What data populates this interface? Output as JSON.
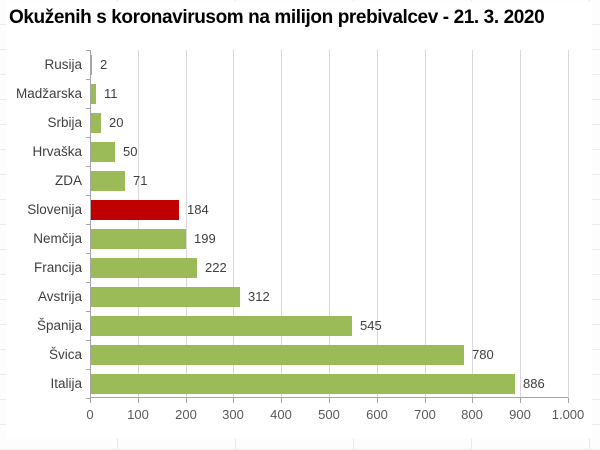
{
  "chart_data": {
    "type": "bar",
    "orientation": "horizontal",
    "title": "Okuženih s koronavirusom na milijon prebivalcev - 21. 3. 2020",
    "categories": [
      "Rusija",
      "Madžarska",
      "Srbija",
      "Hrvaška",
      "ZDA",
      "Slovenija",
      "Nemčija",
      "Francija",
      "Avstrija",
      "Španija",
      "Švica",
      "Italija"
    ],
    "values": [
      2,
      11,
      20,
      50,
      71,
      184,
      199,
      222,
      312,
      545,
      780,
      886
    ],
    "value_labels": [
      "2",
      "11",
      "20",
      "50",
      "71",
      "184",
      "199",
      "222",
      "312",
      "545",
      "780",
      "886"
    ],
    "highlight_category": "Slovenija",
    "highlight_index": 5,
    "xlim": [
      0,
      1000
    ],
    "x_tick_values": [
      0,
      100,
      200,
      300,
      400,
      500,
      600,
      700,
      800,
      900,
      1000
    ],
    "x_tick_labels": [
      "0",
      "100",
      "200",
      "300",
      "400",
      "500",
      "600",
      "700",
      "800",
      "900",
      "1.000"
    ],
    "grid": "vertical-only",
    "legend": "none",
    "colors": {
      "bar_default": "#9BBB59",
      "bar_highlight": "#C00000",
      "axis_line": "#A6A6A6",
      "gridline": "#D9D9D9",
      "category_text": "#3F3F3F",
      "value_text": "#404040",
      "tick_text": "#595959",
      "title_text": "#000000",
      "chart_background": "#FFFFFF"
    }
  }
}
